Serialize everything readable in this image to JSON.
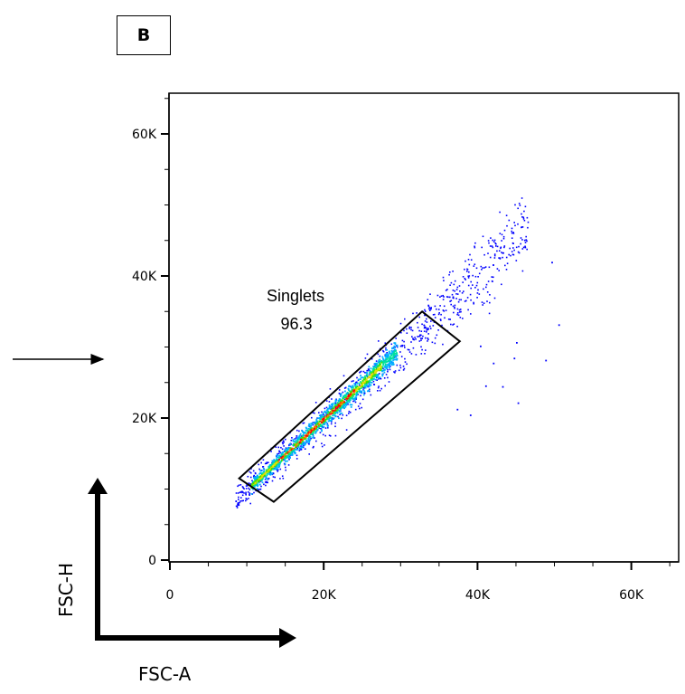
{
  "panel_label": "B",
  "chart_data": {
    "type": "scatter",
    "style": "density dot plot (pseudocolor)",
    "xlabel": "FSC-A",
    "ylabel": "FSC-H",
    "xlim": [
      0,
      65000
    ],
    "ylim": [
      -2000,
      66000
    ],
    "xticks": [
      {
        "value": 0,
        "label": "0"
      },
      {
        "value": 20000,
        "label": "20K"
      },
      {
        "value": 40000,
        "label": "40K"
      },
      {
        "value": 60000,
        "label": "60K"
      }
    ],
    "yticks": [
      {
        "value": 0,
        "label": "0"
      },
      {
        "value": 20000,
        "label": "20K"
      },
      {
        "value": 40000,
        "label": "40K"
      },
      {
        "value": 60000,
        "label": "60K"
      }
    ],
    "gate": {
      "name": "Singlets",
      "percent": "96.3",
      "polygon": [
        [
          9000,
          11500
        ],
        [
          13500,
          8200
        ],
        [
          37700,
          30800
        ],
        [
          32800,
          35000
        ]
      ]
    },
    "main_population": {
      "x_range": [
        9000,
        32000
      ],
      "slope": 1.0,
      "intercept": 0
    },
    "outliers": [
      [
        49600,
        42000
      ],
      [
        50500,
        33200
      ],
      [
        48800,
        28200
      ],
      [
        45000,
        30700
      ],
      [
        42000,
        27800
      ],
      [
        40300,
        30200
      ],
      [
        43200,
        24500
      ],
      [
        41000,
        24600
      ],
      [
        39000,
        20500
      ],
      [
        37300,
        21300
      ],
      [
        45200,
        22200
      ],
      [
        44700,
        28500
      ]
    ],
    "density_colors": [
      "#0000ff",
      "#00b0ff",
      "#00e0a0",
      "#40e000",
      "#e0e000",
      "#ff8000",
      "#ff0000"
    ],
    "grid": false,
    "legend": "none"
  },
  "annotation": {
    "arrow_direction": "right"
  }
}
